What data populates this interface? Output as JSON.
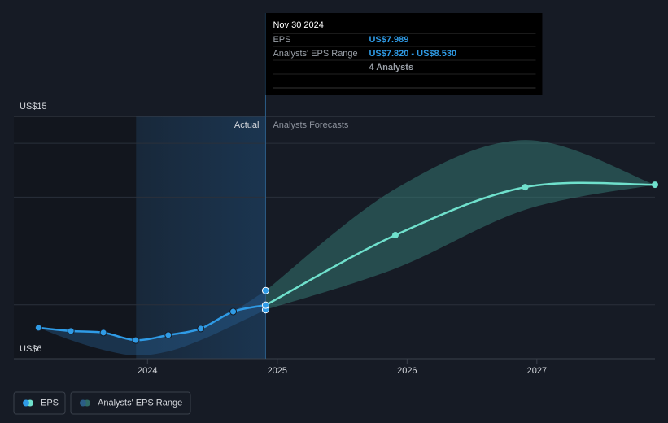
{
  "chart_data": {
    "type": "line",
    "xlim": [
      2022.97,
      2027.91
    ],
    "xticks": [
      2024,
      2025,
      2026,
      2027
    ],
    "ylim": [
      6,
      15
    ],
    "yticks": [
      {
        "value": 6,
        "label": "US$6"
      },
      {
        "value": 15,
        "label": "US$15"
      }
    ],
    "grid_lines": [
      8,
      10,
      12,
      14
    ],
    "divider_label_left": "Actual",
    "divider_label_right": "Analysts Forecasts",
    "divider_x": 2024.91,
    "series": [
      {
        "name": "EPS",
        "color": "#2f9be6",
        "x": [
          2023.16,
          2023.41,
          2023.66,
          2023.91,
          2024.16,
          2024.41,
          2024.66,
          2024.91
        ],
        "values": [
          7.15,
          7.03,
          6.97,
          6.69,
          6.88,
          7.12,
          7.75,
          7.989
        ]
      },
      {
        "name": "Analysts' EPS Range",
        "color": "#3a8a80",
        "x": [
          2023.16,
          2023.41,
          2023.66,
          2023.91,
          2024.16,
          2024.41,
          2024.66,
          2024.91,
          2025.91,
          2026.91,
          2027.91
        ],
        "high": [
          7.15,
          7.03,
          6.97,
          6.69,
          6.88,
          7.12,
          7.75,
          8.53,
          12.31,
          14.12,
          12.46
        ],
        "low": [
          7.15,
          6.69,
          6.33,
          6.12,
          6.27,
          6.69,
          7.24,
          7.82,
          9.35,
          11.53,
          12.46
        ]
      }
    ],
    "forecast": {
      "color": "#6fe0cc",
      "x": [
        2024.91,
        2025.91,
        2026.91,
        2027.91
      ],
      "values": [
        7.989,
        10.59,
        12.37,
        12.46
      ]
    },
    "tooltip": {
      "date": "Nov 30 2024",
      "rows": [
        {
          "label": "EPS",
          "value": "US$7.989"
        },
        {
          "label": "Analysts' EPS Range",
          "value": "US$7.820 - US$8.530"
        },
        {
          "label": "",
          "value": "4 Analysts"
        }
      ]
    }
  }
}
